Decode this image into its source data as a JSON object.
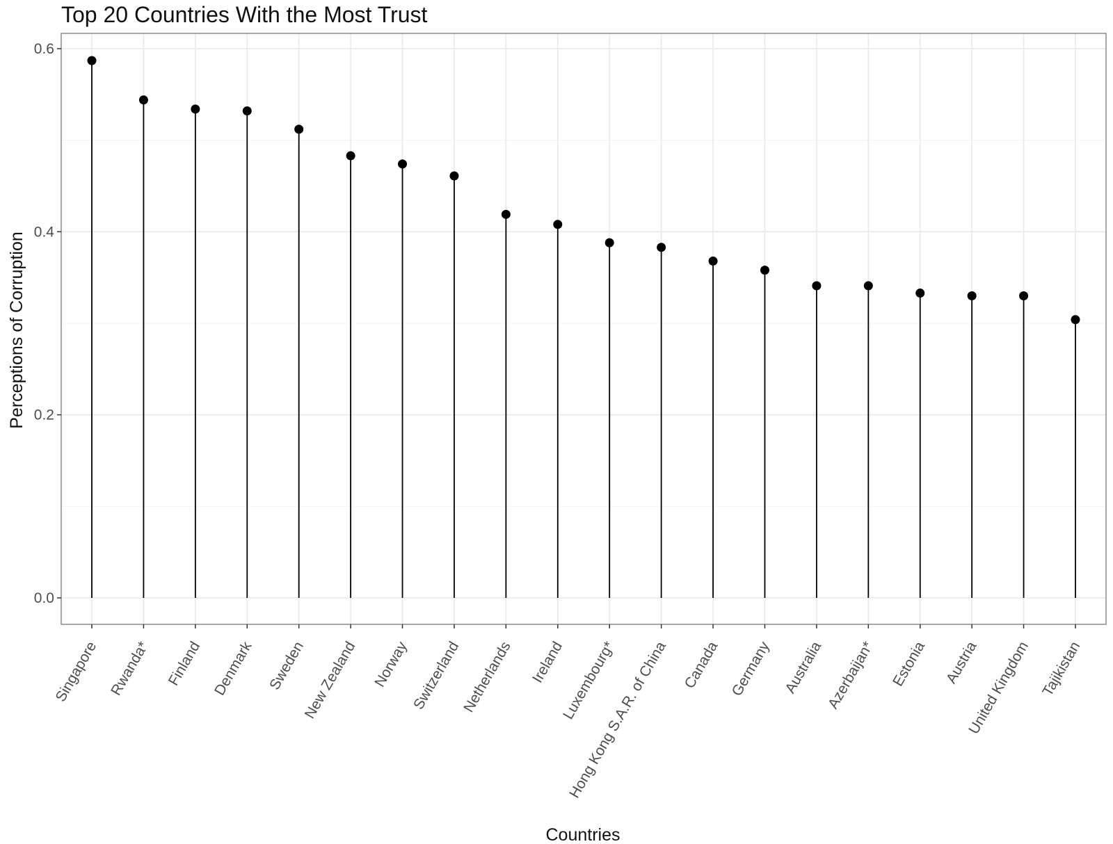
{
  "chart_data": {
    "type": "scatter",
    "style": "lollipop",
    "title": "Top 20 Countries With the Most Trust",
    "xlabel": "Countries",
    "ylabel": "Perceptions of Corruption",
    "ylim": [
      -0.03,
      0.615
    ],
    "yticks": [
      0.0,
      0.2,
      0.4,
      0.6
    ],
    "ytick_labels": [
      "0.0",
      "0.2",
      "0.4",
      "0.6"
    ],
    "grid": true,
    "legend": "none",
    "categories": [
      "Singapore",
      "Rwanda*",
      "Finland",
      "Denmark",
      "Sweden",
      "New Zealand",
      "Norway",
      "Switzerland",
      "Netherlands",
      "Ireland",
      "Luxembourg*",
      "Hong Kong S.A.R. of China",
      "Canada",
      "Germany",
      "Australia",
      "Azerbaijan*",
      "Estonia",
      "Austria",
      "United Kingdom",
      "Tajikistan"
    ],
    "values": [
      0.587,
      0.544,
      0.534,
      0.532,
      0.512,
      0.483,
      0.474,
      0.461,
      0.419,
      0.408,
      0.388,
      0.383,
      0.368,
      0.358,
      0.341,
      0.341,
      0.333,
      0.33,
      0.33,
      0.304
    ],
    "colors": {
      "point": "#000000",
      "stem": "#000000",
      "grid_major": "#ebebeb",
      "grid_minor": "#f5f5f5",
      "panel_border": "#8c8c8c",
      "tick_text": "#4d4d4d",
      "text": "#111111"
    }
  }
}
